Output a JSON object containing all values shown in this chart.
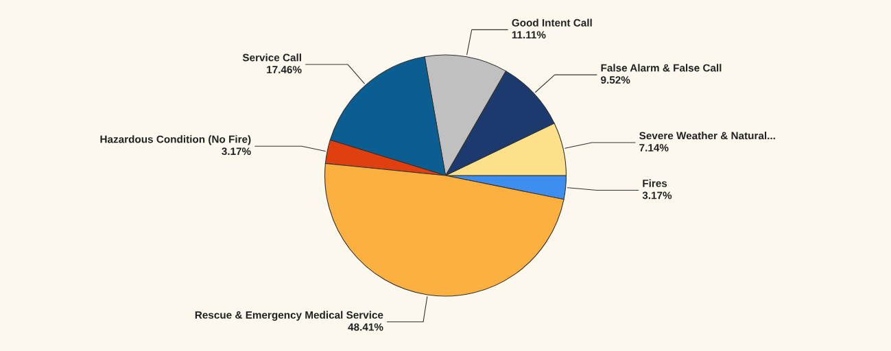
{
  "chart_data": {
    "type": "pie",
    "categories": [
      "Fires",
      "Severe Weather & Natural...",
      "False Alarm & False Call",
      "Good Intent Call",
      "Service Call",
      "Hazardous Condition (No Fire)",
      "Rescue & Emergency Medical Service"
    ],
    "values": [
      3.17,
      7.14,
      9.52,
      11.11,
      17.46,
      3.17,
      48.41
    ],
    "value_labels": [
      "3.17%",
      "7.14%",
      "9.52%",
      "11.11%",
      "17.46%",
      "3.17%",
      "48.41%"
    ],
    "colors": [
      "#3e8ef0",
      "#fde08a",
      "#1c3a6e",
      "#c0c0c0",
      "#0b5e91",
      "#e0400f",
      "#fbb040"
    ]
  }
}
